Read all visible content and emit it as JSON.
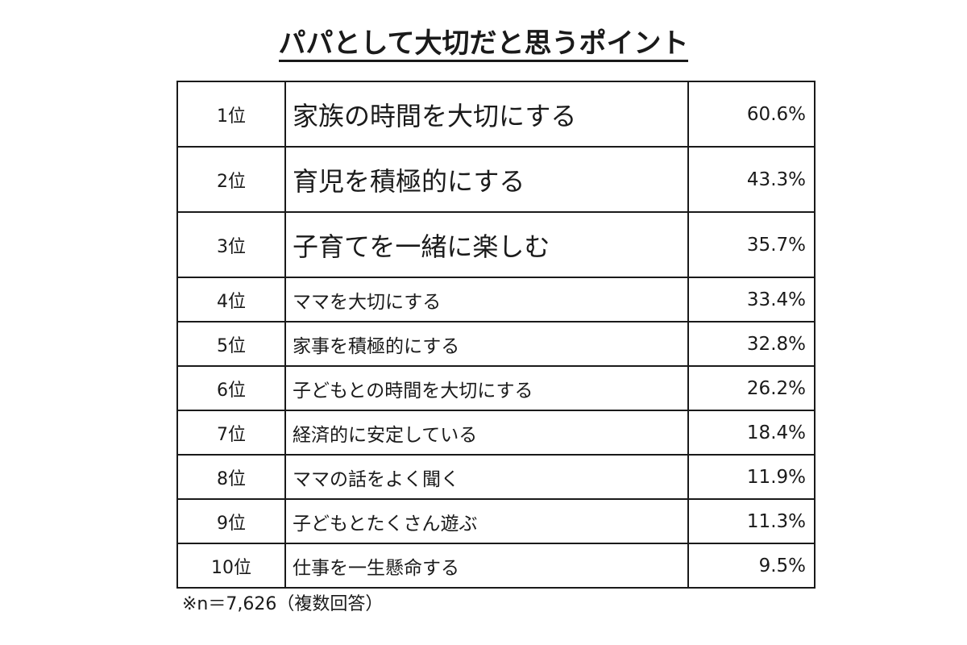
{
  "chart_data": {
    "type": "table",
    "title": "パパとして大切だと思うポイント",
    "rows": [
      {
        "rank": "1位",
        "label": "家族の時間を大切にする",
        "value": "60.6%"
      },
      {
        "rank": "2位",
        "label": "育児を積極的にする",
        "value": "43.3%"
      },
      {
        "rank": "3位",
        "label": "子育てを一緒に楽しむ",
        "value": "35.7%"
      },
      {
        "rank": "4位",
        "label": "ママを大切にする",
        "value": "33.4%"
      },
      {
        "rank": "5位",
        "label": "家事を積極的にする",
        "value": "32.8%"
      },
      {
        "rank": "6位",
        "label": "子どもとの時間を大切にする",
        "value": "26.2%"
      },
      {
        "rank": "7位",
        "label": "経済的に安定している",
        "value": "18.4%"
      },
      {
        "rank": "8位",
        "label": "ママの話をよく聞く",
        "value": "11.9%"
      },
      {
        "rank": "9位",
        "label": "子どもとたくさん遊ぶ",
        "value": "11.3%"
      },
      {
        "rank": "10位",
        "label": "仕事を一生懸命する",
        "value": "9.5%"
      }
    ],
    "note": "※n＝7,626（複数回答）"
  }
}
